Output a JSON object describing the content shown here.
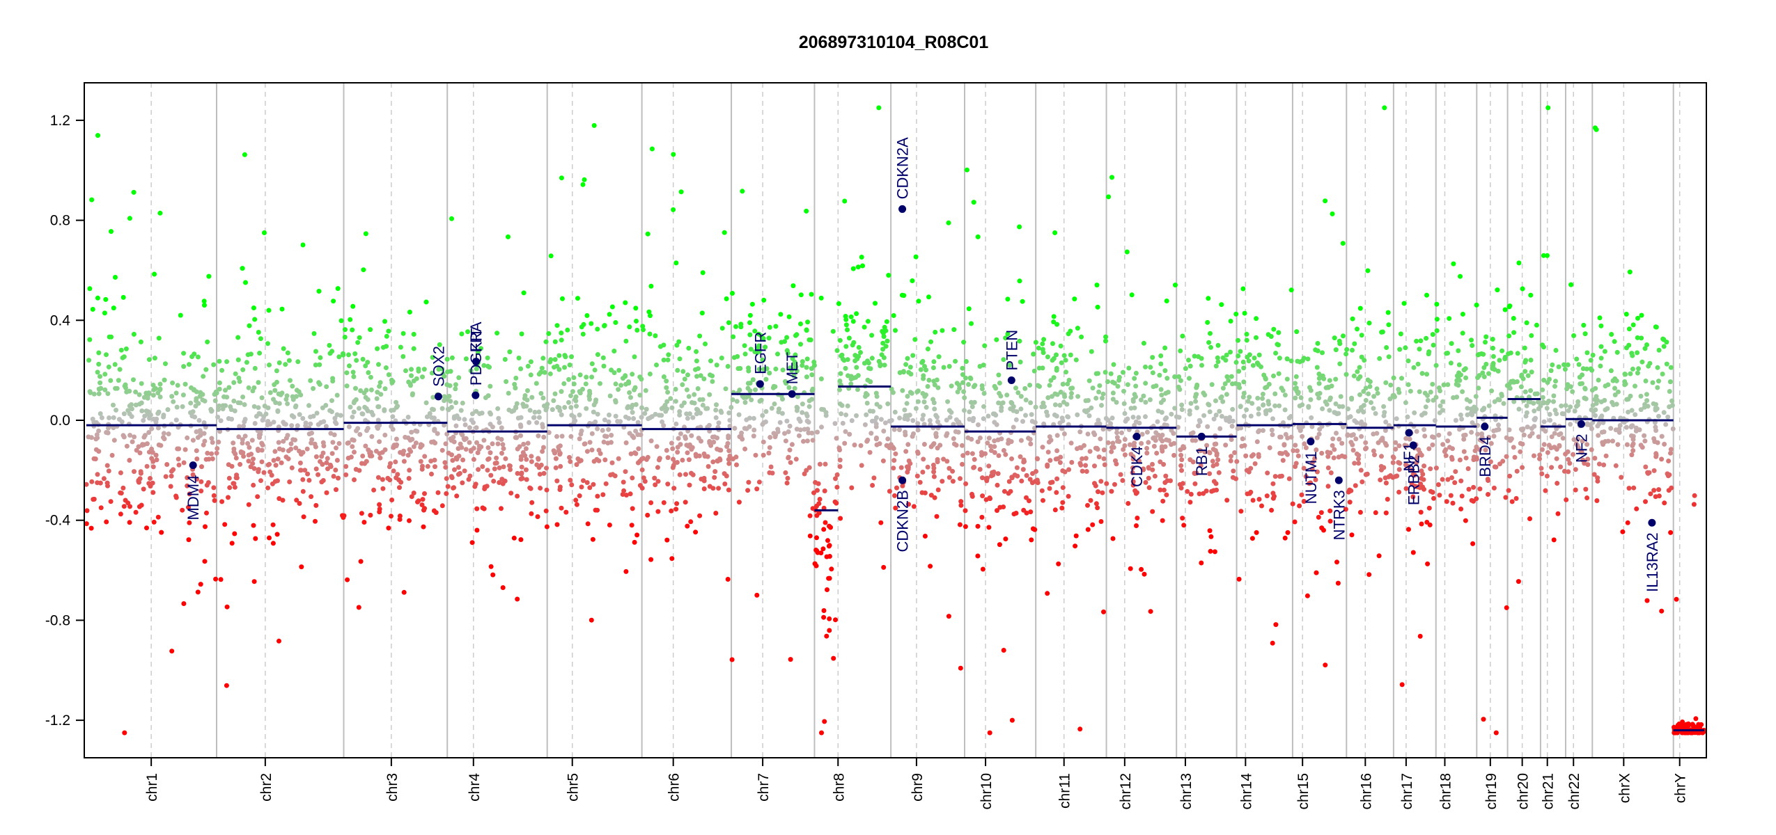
{
  "chart_data": {
    "type": "scatter",
    "title": "206897310104_R08C01",
    "xlabel": "",
    "ylabel": "",
    "ylim": [
      -1.35,
      1.35
    ],
    "yticks": [
      -1.2,
      -0.8,
      -0.4,
      0.0,
      0.4,
      0.8,
      1.2
    ],
    "ytick_labels": [
      "-1.2",
      "-0.8",
      "-0.4",
      "0.0",
      "0.4",
      "0.8",
      "1.2"
    ],
    "grid": "chromosome boundaries (solid) and centromeres (dashed)",
    "colors": {
      "gain": "#00ff00",
      "neutral": "#bebebe",
      "loss": "#ff0000",
      "segment": "#00006b",
      "gene": "#00006b",
      "boundary": "#bebebe"
    },
    "chromosomes": [
      {
        "name": "chr1",
        "length": 249,
        "centromere": 124
      },
      {
        "name": "chr2",
        "length": 243,
        "centromere": 93
      },
      {
        "name": "chr3",
        "length": 198,
        "centromere": 91
      },
      {
        "name": "chr4",
        "length": 191,
        "centromere": 50
      },
      {
        "name": "chr5",
        "length": 181,
        "centromere": 48
      },
      {
        "name": "chr6",
        "length": 171,
        "centromere": 60
      },
      {
        "name": "chr7",
        "length": 159,
        "centromere": 60
      },
      {
        "name": "chr8",
        "length": 146,
        "centromere": 45
      },
      {
        "name": "chr9",
        "length": 141,
        "centromere": 49
      },
      {
        "name": "chr10",
        "length": 136,
        "centromere": 40
      },
      {
        "name": "chr11",
        "length": 135,
        "centromere": 54
      },
      {
        "name": "chr12",
        "length": 134,
        "centromere": 35
      },
      {
        "name": "chr13",
        "length": 115,
        "centromere": 17
      },
      {
        "name": "chr14",
        "length": 107,
        "centromere": 17
      },
      {
        "name": "chr15",
        "length": 103,
        "centromere": 19
      },
      {
        "name": "chr16",
        "length": 90,
        "centromere": 36
      },
      {
        "name": "chr17",
        "length": 81,
        "centromere": 24
      },
      {
        "name": "chr18",
        "length": 78,
        "centromere": 17
      },
      {
        "name": "chr19",
        "length": 59,
        "centromere": 26
      },
      {
        "name": "chr20",
        "length": 63,
        "centromere": 28
      },
      {
        "name": "chr21",
        "length": 48,
        "centromere": 13
      },
      {
        "name": "chr22",
        "length": 51,
        "centromere": 15
      },
      {
        "name": "chrX",
        "length": 155,
        "centromere": 60
      },
      {
        "name": "chrY",
        "length": 59,
        "centromere": 12
      }
    ],
    "segments": [
      {
        "chr": "chr1",
        "start": 0,
        "end": 249,
        "value": -0.02
      },
      {
        "chr": "chr2",
        "start": 0,
        "end": 243,
        "value": -0.035
      },
      {
        "chr": "chr3",
        "start": 0,
        "end": 198,
        "value": -0.01
      },
      {
        "chr": "chr4",
        "start": 0,
        "end": 191,
        "value": -0.045
      },
      {
        "chr": "chr5",
        "start": 0,
        "end": 181,
        "value": -0.02
      },
      {
        "chr": "chr6",
        "start": 0,
        "end": 171,
        "value": -0.035
      },
      {
        "chr": "chr7",
        "start": 0,
        "end": 159,
        "value": 0.105
      },
      {
        "chr": "chr8",
        "start": 0,
        "end": 45,
        "value": -0.36
      },
      {
        "chr": "chr8",
        "start": 45,
        "end": 146,
        "value": 0.135
      },
      {
        "chr": "chr9",
        "start": 0,
        "end": 141,
        "value": -0.025
      },
      {
        "chr": "chr10",
        "start": 0,
        "end": 136,
        "value": -0.045
      },
      {
        "chr": "chr11",
        "start": 0,
        "end": 135,
        "value": -0.025
      },
      {
        "chr": "chr12",
        "start": 0,
        "end": 134,
        "value": -0.03
      },
      {
        "chr": "chr13",
        "start": 0,
        "end": 115,
        "value": -0.065
      },
      {
        "chr": "chr14",
        "start": 0,
        "end": 107,
        "value": -0.02
      },
      {
        "chr": "chr15",
        "start": 0,
        "end": 103,
        "value": -0.015
      },
      {
        "chr": "chr16",
        "start": 0,
        "end": 90,
        "value": -0.03
      },
      {
        "chr": "chr17",
        "start": 0,
        "end": 81,
        "value": -0.02
      },
      {
        "chr": "chr18",
        "start": 0,
        "end": 78,
        "value": -0.025
      },
      {
        "chr": "chr19",
        "start": 0,
        "end": 59,
        "value": 0.01
      },
      {
        "chr": "chr20",
        "start": 0,
        "end": 63,
        "value": 0.085
      },
      {
        "chr": "chr21",
        "start": 0,
        "end": 48,
        "value": -0.025
      },
      {
        "chr": "chr22",
        "start": 0,
        "end": 51,
        "value": 0.005
      },
      {
        "chr": "chrX",
        "start": 0,
        "end": 155,
        "value": 0.0
      },
      {
        "chr": "chrY",
        "start": 0,
        "end": 59,
        "value": -1.24
      }
    ],
    "genes": [
      {
        "name": "MDM4",
        "chr": "chr1",
        "pos": 204,
        "value": -0.18,
        "label_side": "below"
      },
      {
        "name": "SOX2",
        "chr": "chr3",
        "pos": 181,
        "value": 0.095,
        "label_side": "above"
      },
      {
        "name": "KIT",
        "chr": "chr4",
        "pos": 55,
        "value": 0.235,
        "label_side": "above"
      },
      {
        "name": "PDGFRA",
        "chr": "chr4",
        "pos": 54,
        "value": 0.1,
        "label_side": "above"
      },
      {
        "name": "EGFR",
        "chr": "chr7",
        "pos": 55,
        "value": 0.145,
        "label_side": "above"
      },
      {
        "name": "MET",
        "chr": "chr7",
        "pos": 116,
        "value": 0.105,
        "label_side": "above"
      },
      {
        "name": "CDKN2A",
        "chr": "chr9",
        "pos": 21.9,
        "value": 0.845,
        "label_side": "above"
      },
      {
        "name": "CDKN2B",
        "chr": "chr9",
        "pos": 22.0,
        "value": -0.24,
        "label_side": "below"
      },
      {
        "name": "PTEN",
        "chr": "chr10",
        "pos": 89.6,
        "value": 0.16,
        "label_side": "above"
      },
      {
        "name": "CDK4",
        "chr": "chr12",
        "pos": 58,
        "value": -0.065,
        "label_side": "below"
      },
      {
        "name": "RB1",
        "chr": "chr13",
        "pos": 48,
        "value": -0.065,
        "label_side": "below"
      },
      {
        "name": "NUTM1",
        "chr": "chr15",
        "pos": 34.6,
        "value": -0.085,
        "label_side": "below"
      },
      {
        "name": "NTRK3",
        "chr": "chr15",
        "pos": 88.4,
        "value": -0.24,
        "label_side": "below"
      },
      {
        "name": "NF1",
        "chr": "chr17",
        "pos": 29.5,
        "value": -0.05,
        "label_side": "below"
      },
      {
        "name": "ERBB2",
        "chr": "chr17",
        "pos": 37.8,
        "value": -0.1,
        "label_side": "below"
      },
      {
        "name": "BRD4",
        "chr": "chr19",
        "pos": 15.3,
        "value": -0.025,
        "label_side": "below"
      },
      {
        "name": "NF2",
        "chr": "chr22",
        "pos": 29.9,
        "value": -0.015,
        "label_side": "below"
      },
      {
        "name": "IL13RA2",
        "chr": "chrX",
        "pos": 114,
        "value": -0.41,
        "label_side": "below"
      }
    ]
  }
}
